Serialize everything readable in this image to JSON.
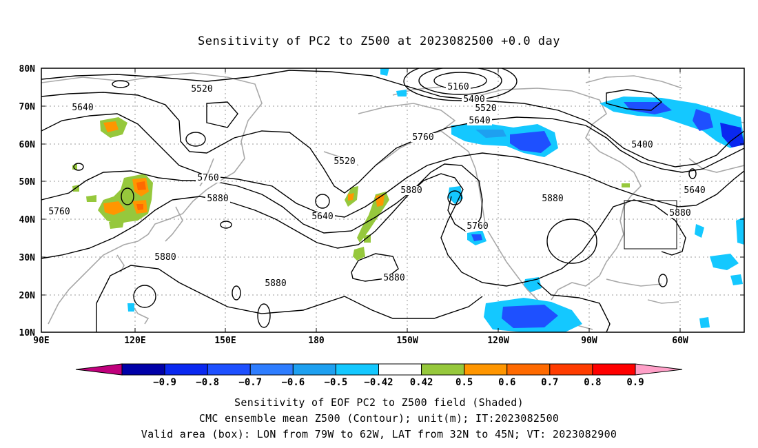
{
  "title": "Sensitivity of PC2 to Z500 at 2023082500 +0.0 day",
  "axes": {
    "lat_labels": [
      "80N",
      "70N",
      "60N",
      "50N",
      "40N",
      "30N",
      "20N",
      "10N"
    ],
    "lon_labels": [
      "90E",
      "120E",
      "150E",
      "180",
      "150W",
      "120W",
      "90W",
      "60W"
    ]
  },
  "contour_labels": [
    "5160",
    "5400",
    "5400",
    "5520",
    "5520",
    "5520",
    "5640",
    "5640",
    "5640",
    "5640",
    "5760",
    "5760",
    "5760",
    "5760",
    "5880",
    "5880",
    "5880",
    "5880",
    "5880",
    "5880",
    "5880"
  ],
  "colorbar": {
    "labels": [
      "-0.9",
      "-0.8",
      "-0.7",
      "-0.6",
      "-0.5",
      "-0.42",
      "0.42",
      "0.5",
      "0.6",
      "0.7",
      "0.8",
      "0.9"
    ],
    "colors": [
      "#c0007c",
      "#0000a8",
      "#0a28f0",
      "#1e50ff",
      "#2e7dff",
      "#1ea0f0",
      "#14c8ff",
      "#ffffff",
      "#96c83c",
      "#ff9600",
      "#ff6a00",
      "#ff3c00",
      "#ff0000",
      "#ffa0c8"
    ]
  },
  "valid_box": {
    "lon_w": -79,
    "lon_e": -62,
    "lat_s": 32,
    "lat_n": 45
  },
  "caption": {
    "line1": "Sensitivity of EOF PC2 to Z500 field (Shaded)",
    "line2": "CMC ensemble mean Z500 (Contour); unit(m); IT:2023082500",
    "line3": "Valid area (box): LON from 79W to 62W, LAT from 32N to 45N; VT: 2023082900"
  }
}
